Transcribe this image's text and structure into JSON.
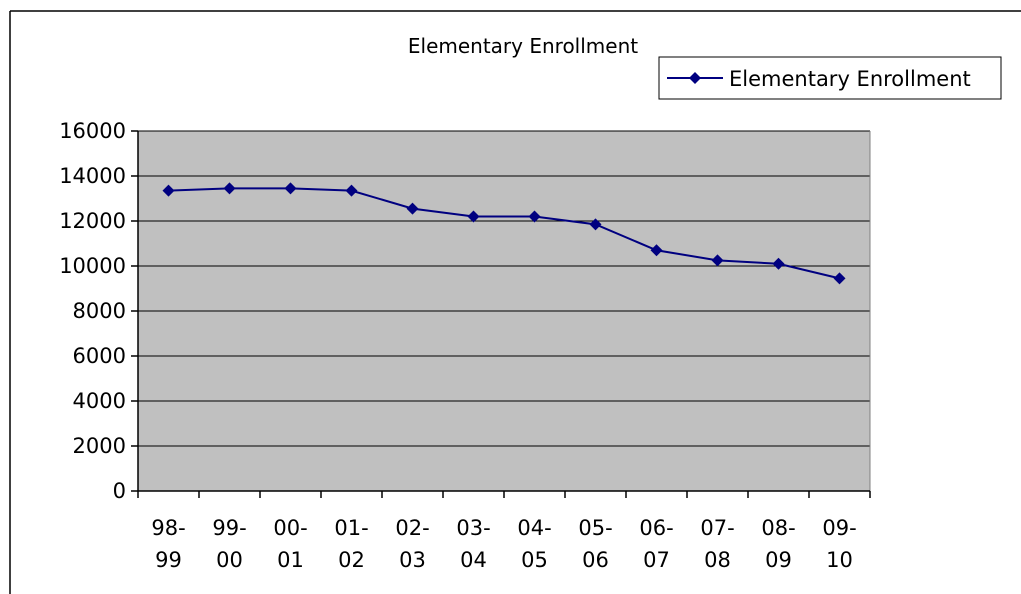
{
  "chart_data": {
    "type": "line",
    "title": "Elementary Enrollment",
    "xlabel": "",
    "ylabel": "",
    "categories": [
      [
        "98-",
        "99"
      ],
      [
        "99-",
        "00"
      ],
      [
        "00-",
        "01"
      ],
      [
        "01-",
        "02"
      ],
      [
        "02-",
        "03"
      ],
      [
        "03-",
        "04"
      ],
      [
        "04-",
        "05"
      ],
      [
        "05-",
        "06"
      ],
      [
        "06-",
        "07"
      ],
      [
        "07-",
        "08"
      ],
      [
        "08-",
        "09"
      ],
      [
        "09-",
        "10"
      ]
    ],
    "series": [
      {
        "name": "Elementary Enrollment",
        "values": [
          13350,
          13450,
          13450,
          13350,
          12550,
          12200,
          12200,
          11850,
          10700,
          10250,
          10100,
          9450
        ]
      }
    ],
    "ylim": [
      0,
      16000
    ],
    "yticks": [
      0,
      2000,
      4000,
      6000,
      8000,
      10000,
      12000,
      14000,
      16000
    ],
    "grid": true,
    "legend": "top-right",
    "colors": {
      "line": "#000080",
      "plot_background": "#c0c0c0",
      "gridline": "#000000"
    }
  }
}
